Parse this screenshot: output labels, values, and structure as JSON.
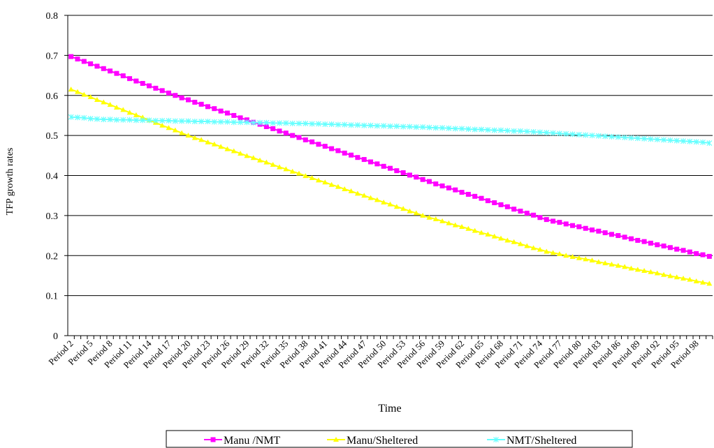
{
  "chart_data": {
    "type": "line",
    "x_label": "Time",
    "y_label": "TFP growth rates",
    "categories": [
      "Period 2",
      null,
      null,
      "Period 5",
      null,
      null,
      "Period 8",
      null,
      null,
      "Period 11",
      null,
      null,
      "Period 14",
      null,
      null,
      "Period 17",
      null,
      null,
      "Period 20",
      null,
      null,
      "Period 23",
      null,
      null,
      "Period 26",
      null,
      null,
      "Period 29",
      null,
      null,
      "Period 32",
      null,
      null,
      "Period 35",
      null,
      null,
      "Period 38",
      null,
      null,
      "Period 41",
      null,
      null,
      "Period 44",
      null,
      null,
      "Period 47",
      null,
      null,
      "Period 50",
      null,
      null,
      "Period 53",
      null,
      null,
      "Period 56",
      null,
      null,
      "Period 59",
      null,
      null,
      "Period 62",
      null,
      null,
      "Period 65",
      null,
      null,
      "Period 68",
      null,
      null,
      "Period 71",
      null,
      null,
      "Period 74",
      null,
      null,
      "Period 77",
      null,
      null,
      "Period 80",
      null,
      null,
      "Period 83",
      null,
      null,
      "Period 86",
      null,
      null,
      "Period 89",
      null,
      null,
      "Period 92",
      null,
      null,
      "Period 95",
      null,
      null,
      "Period 98",
      null,
      null
    ],
    "series": [
      {
        "name": "Manu /NMT",
        "color": "#ff00ff",
        "marker": "square",
        "values": [
          0.697,
          0.691,
          0.685,
          0.679,
          0.673,
          0.667,
          0.661,
          0.655,
          0.649,
          0.642,
          0.636,
          0.63,
          0.624,
          0.618,
          0.612,
          0.606,
          0.6,
          0.594,
          0.589,
          0.583,
          0.578,
          0.572,
          0.567,
          0.561,
          0.556,
          0.55,
          0.544,
          0.539,
          0.533,
          0.528,
          0.522,
          0.517,
          0.511,
          0.506,
          0.5,
          0.495,
          0.489,
          0.484,
          0.478,
          0.473,
          0.467,
          0.462,
          0.456,
          0.451,
          0.445,
          0.44,
          0.434,
          0.429,
          0.423,
          0.418,
          0.412,
          0.407,
          0.401,
          0.396,
          0.39,
          0.385,
          0.379,
          0.374,
          0.369,
          0.364,
          0.358,
          0.353,
          0.348,
          0.343,
          0.337,
          0.332,
          0.327,
          0.322,
          0.316,
          0.311,
          0.306,
          0.301,
          0.295,
          0.29,
          0.286,
          0.283,
          0.279,
          0.275,
          0.272,
          0.268,
          0.264,
          0.261,
          0.257,
          0.253,
          0.25,
          0.246,
          0.242,
          0.238,
          0.235,
          0.231,
          0.227,
          0.224,
          0.22,
          0.216,
          0.213,
          0.209,
          0.205,
          0.202,
          0.198
        ]
      },
      {
        "name": "Manu/Sheltered",
        "color": "#ffff00",
        "marker": "triangle",
        "values": [
          0.615,
          0.609,
          0.602,
          0.596,
          0.589,
          0.583,
          0.577,
          0.57,
          0.564,
          0.557,
          0.551,
          0.545,
          0.538,
          0.532,
          0.525,
          0.519,
          0.513,
          0.506,
          0.5,
          0.494,
          0.489,
          0.483,
          0.478,
          0.472,
          0.466,
          0.461,
          0.455,
          0.449,
          0.444,
          0.438,
          0.433,
          0.427,
          0.421,
          0.416,
          0.41,
          0.405,
          0.399,
          0.394,
          0.388,
          0.383,
          0.377,
          0.372,
          0.366,
          0.361,
          0.355,
          0.35,
          0.344,
          0.339,
          0.333,
          0.328,
          0.322,
          0.317,
          0.311,
          0.306,
          0.3,
          0.295,
          0.291,
          0.286,
          0.281,
          0.276,
          0.272,
          0.267,
          0.262,
          0.257,
          0.253,
          0.248,
          0.243,
          0.238,
          0.234,
          0.229,
          0.224,
          0.219,
          0.215,
          0.21,
          0.207,
          0.204,
          0.2,
          0.197,
          0.194,
          0.191,
          0.188,
          0.184,
          0.181,
          0.178,
          0.175,
          0.172,
          0.168,
          0.165,
          0.162,
          0.159,
          0.156,
          0.152,
          0.149,
          0.146,
          0.143,
          0.14,
          0.136,
          0.133,
          0.13
        ]
      },
      {
        "name": "NMT/Sheltered",
        "color": "#66ffff",
        "marker": "star",
        "values": [
          0.546,
          0.545,
          0.544,
          0.542,
          0.541,
          0.54,
          0.54,
          0.539,
          0.539,
          0.539,
          0.538,
          0.538,
          0.538,
          0.537,
          0.537,
          0.537,
          0.536,
          0.536,
          0.536,
          0.535,
          0.535,
          0.535,
          0.534,
          0.534,
          0.534,
          0.533,
          0.533,
          0.533,
          0.532,
          0.532,
          0.532,
          0.531,
          0.531,
          0.531,
          0.53,
          0.53,
          0.53,
          0.529,
          0.529,
          0.528,
          0.528,
          0.527,
          0.527,
          0.526,
          0.526,
          0.525,
          0.525,
          0.524,
          0.524,
          0.523,
          0.523,
          0.522,
          0.522,
          0.521,
          0.521,
          0.52,
          0.519,
          0.519,
          0.518,
          0.517,
          0.517,
          0.516,
          0.515,
          0.515,
          0.514,
          0.513,
          0.513,
          0.512,
          0.511,
          0.511,
          0.51,
          0.509,
          0.508,
          0.507,
          0.506,
          0.505,
          0.504,
          0.503,
          0.502,
          0.501,
          0.5,
          0.499,
          0.498,
          0.497,
          0.496,
          0.495,
          0.494,
          0.493,
          0.492,
          0.491,
          0.49,
          0.489,
          0.488,
          0.487,
          0.486,
          0.485,
          0.484,
          0.483,
          0.481
        ]
      }
    ],
    "ylim": [
      0,
      0.8
    ],
    "yticks": [
      0,
      0.1,
      0.2,
      0.3,
      0.4,
      0.5,
      0.6,
      0.7,
      0.8
    ],
    "grid": true,
    "legend": "bottom"
  }
}
